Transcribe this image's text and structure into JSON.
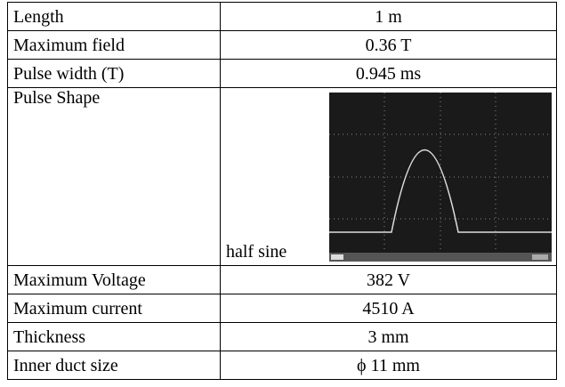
{
  "table": {
    "rows": [
      [
        "Length",
        "1 m"
      ],
      [
        "Maximum field",
        "0.36 T"
      ],
      [
        "Pulse width (T)",
        "0.945 ms"
      ],
      [
        "Pulse Shape",
        "half sine"
      ],
      [
        "Maximum Voltage",
        "382 V"
      ],
      [
        "Maximum current",
        "4510 A"
      ],
      [
        "Thickness",
        "3 mm"
      ],
      [
        "Inner duct size",
        "ϕ 11 mm"
      ]
    ]
  }
}
